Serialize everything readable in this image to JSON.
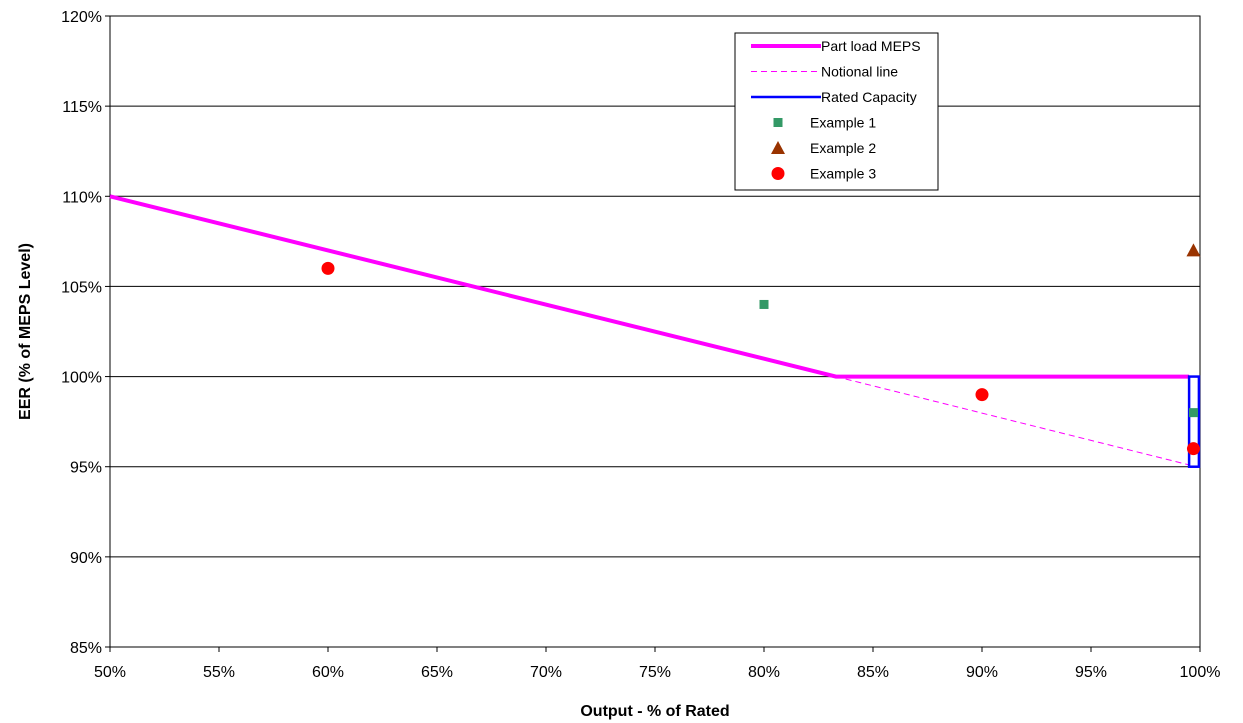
{
  "chart_data": {
    "type": "line",
    "title": "",
    "xlabel": "Output - % of Rated",
    "ylabel": "EER (% of MEPS Level)",
    "xlim": [
      50,
      100
    ],
    "ylim": [
      85,
      120
    ],
    "x_ticks": [
      50,
      55,
      60,
      65,
      70,
      75,
      80,
      85,
      90,
      95,
      100
    ],
    "y_ticks": [
      85,
      90,
      95,
      100,
      105,
      110,
      115,
      120
    ],
    "x_tick_labels": [
      "50%",
      "55%",
      "60%",
      "65%",
      "70%",
      "75%",
      "80%",
      "85%",
      "90%",
      "95%",
      "100%"
    ],
    "y_tick_labels": [
      "85%",
      "90%",
      "95%",
      "100%",
      "105%",
      "110%",
      "115%",
      "120%"
    ],
    "grid": "horizontal",
    "legend_position": "top-right",
    "series": [
      {
        "name": "Part load MEPS",
        "kind": "line",
        "color": "#ff00ff",
        "style": "solid",
        "x": [
          50,
          83.3,
          99.5
        ],
        "y": [
          110,
          100,
          100
        ]
      },
      {
        "name": "Notional line",
        "kind": "line",
        "color": "#ff00ff",
        "style": "dashed",
        "x": [
          83.3,
          99.5
        ],
        "y": [
          100,
          95.1
        ]
      },
      {
        "name": "Rated Capacity",
        "kind": "rect",
        "color": "#0000ff",
        "style": "solid",
        "x": [
          99.5,
          99.95
        ],
        "y": [
          95,
          100
        ]
      },
      {
        "name": "Example 1",
        "kind": "scatter",
        "marker": "square",
        "color": "#339966",
        "x": [
          80,
          99.7
        ],
        "y": [
          104,
          98
        ]
      },
      {
        "name": "Example 2",
        "kind": "scatter",
        "marker": "triangle",
        "color": "#993300",
        "x": [
          99.7
        ],
        "y": [
          107
        ]
      },
      {
        "name": "Example 3",
        "kind": "scatter",
        "marker": "circle",
        "color": "#ff0000",
        "x": [
          60,
          90,
          99.7
        ],
        "y": [
          106,
          99,
          96
        ]
      }
    ]
  }
}
